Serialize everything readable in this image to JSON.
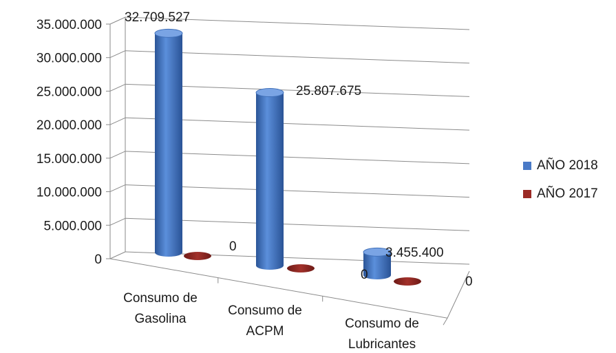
{
  "chart_data": {
    "type": "bar",
    "categories": [
      [
        "Consumo de",
        "Gasolina"
      ],
      [
        "Consumo de",
        "ACPM"
      ],
      [
        "Consumo de",
        "Lubricantes"
      ]
    ],
    "series": [
      {
        "name": "AÑO 2018",
        "values": [
          32709527,
          25807675,
          3455400
        ],
        "labels": [
          "32.709.527",
          "25.807.675",
          "3.455.400"
        ],
        "color": "#4a7ac7"
      },
      {
        "name": "AÑO 2017",
        "values": [
          0,
          0,
          0
        ],
        "labels": [
          "0",
          "0",
          "0"
        ],
        "color": "#9b2a25"
      }
    ],
    "yticks": [
      "0",
      "5.000.000",
      "10.000.000",
      "15.000.000",
      "20.000.000",
      "25.000.000",
      "30.000.000",
      "35.000.000"
    ],
    "ylim": [
      0,
      35000000
    ],
    "grid": true,
    "legend": "right",
    "style": "3d-cylinder"
  }
}
